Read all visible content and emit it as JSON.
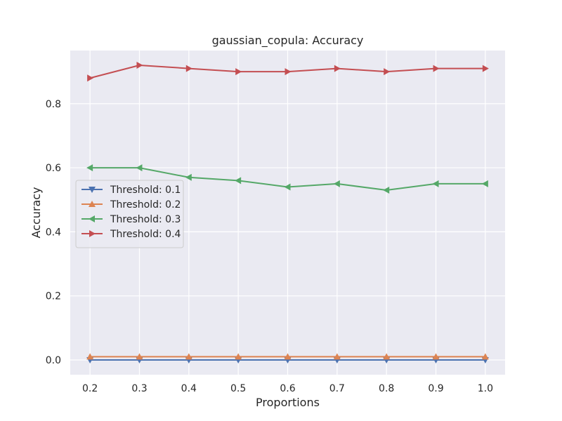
{
  "chart_data": {
    "type": "line",
    "title": "gaussian_copula: Accuracy",
    "xlabel": "Proportions",
    "ylabel": "Accuracy",
    "x": [
      0.2,
      0.3,
      0.4,
      0.5,
      0.6,
      0.7,
      0.8,
      0.9,
      1.0
    ],
    "x_tick_labels": [
      "0.2",
      "0.3",
      "0.4",
      "0.5",
      "0.6",
      "0.7",
      "0.8",
      "0.9",
      "1.0"
    ],
    "y_ticks": [
      0.0,
      0.2,
      0.4,
      0.6,
      0.8
    ],
    "y_tick_labels": [
      "0.0",
      "0.2",
      "0.4",
      "0.6",
      "0.8"
    ],
    "xlim": [
      0.16,
      1.04
    ],
    "ylim": [
      -0.046,
      0.966
    ],
    "grid": true,
    "legend_position": "center-left",
    "background": "#eaeaf2",
    "series": [
      {
        "name": "Threshold: 0.1",
        "color": "#4c72b0",
        "marker": "triangle-down",
        "values": [
          0.0,
          0.0,
          0.0,
          0.0,
          0.0,
          0.0,
          0.0,
          0.0,
          0.0
        ]
      },
      {
        "name": "Threshold: 0.2",
        "color": "#dd8452",
        "marker": "triangle-up",
        "values": [
          0.01,
          0.01,
          0.01,
          0.01,
          0.01,
          0.01,
          0.01,
          0.01,
          0.01
        ]
      },
      {
        "name": "Threshold: 0.3",
        "color": "#55a868",
        "marker": "triangle-left",
        "values": [
          0.6,
          0.6,
          0.57,
          0.56,
          0.54,
          0.55,
          0.53,
          0.55,
          0.55
        ]
      },
      {
        "name": "Threshold: 0.4",
        "color": "#c44e52",
        "marker": "triangle-right",
        "values": [
          0.88,
          0.92,
          0.91,
          0.9,
          0.9,
          0.91,
          0.9,
          0.91,
          0.91
        ]
      }
    ]
  }
}
